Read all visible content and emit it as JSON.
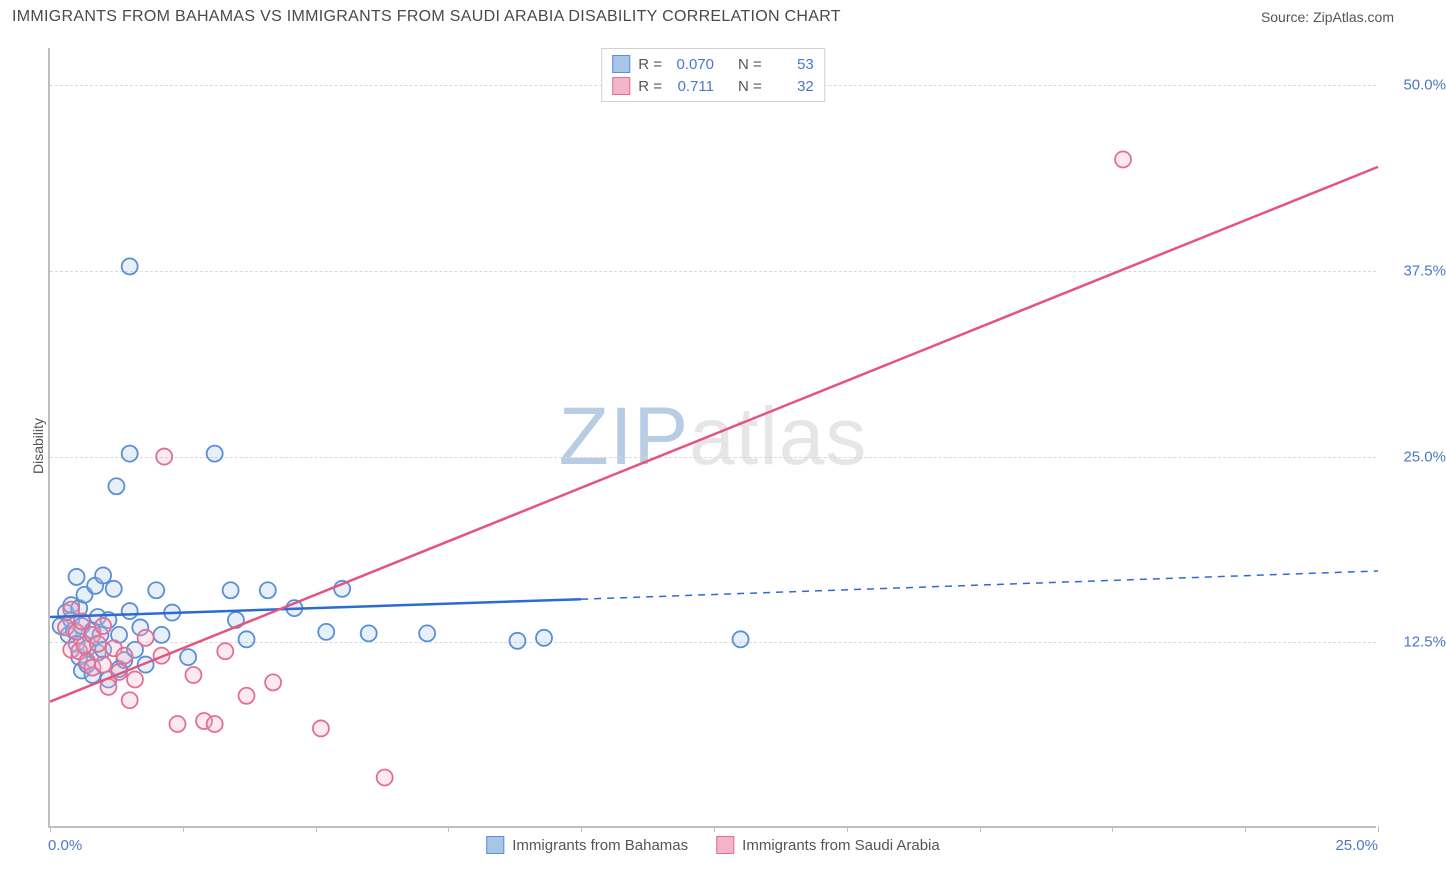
{
  "title": "IMMIGRANTS FROM BAHAMAS VS IMMIGRANTS FROM SAUDI ARABIA DISABILITY CORRELATION CHART",
  "source": "Source: ZipAtlas.com",
  "y_axis_label": "Disability",
  "watermark_a": "ZIP",
  "watermark_b": "atlas",
  "chart": {
    "type": "scatter",
    "xlim": [
      0.0,
      25.0
    ],
    "ylim": [
      0.0,
      52.5
    ],
    "x_ticks": [
      0.0,
      2.5,
      5.0,
      7.5,
      10.0,
      12.5,
      15.0,
      17.5,
      20.0,
      22.5,
      25.0
    ],
    "x_tick_labels": {
      "0": "0.0%",
      "25": "25.0%"
    },
    "y_ticks": [
      12.5,
      25.0,
      37.5,
      50.0
    ],
    "y_tick_labels": [
      "12.5%",
      "25.0%",
      "37.5%",
      "50.0%"
    ],
    "grid_color": "#d9d9d9",
    "axis_color": "#bfbfbf",
    "background_color": "#ffffff",
    "marker_radius": 8,
    "marker_stroke_width": 1.8,
    "marker_fill_opacity": 0.28
  },
  "series": [
    {
      "id": "bahamas",
      "name": "Immigrants from Bahamas",
      "color_stroke": "#5a8fd6",
      "color_fill": "#a8c5e8",
      "r_value": "0.070",
      "n_value": "53",
      "regression": {
        "solid": {
          "x1": 0.0,
          "y1": 14.2,
          "x2": 10.0,
          "y2": 15.4
        },
        "dashed": {
          "x1": 10.0,
          "y1": 15.4,
          "x2": 25.0,
          "y2": 17.3
        },
        "line_color": "#2e6bd1",
        "line_width": 2.5
      },
      "points": [
        [
          0.2,
          13.6
        ],
        [
          0.3,
          14.5
        ],
        [
          0.35,
          13.0
        ],
        [
          0.4,
          15.0
        ],
        [
          0.4,
          14.0
        ],
        [
          0.45,
          13.3
        ],
        [
          0.5,
          16.9
        ],
        [
          0.5,
          12.4
        ],
        [
          0.55,
          14.8
        ],
        [
          0.55,
          11.5
        ],
        [
          0.6,
          13.6
        ],
        [
          0.6,
          10.6
        ],
        [
          0.65,
          15.7
        ],
        [
          0.7,
          12.1
        ],
        [
          0.7,
          11.0
        ],
        [
          0.8,
          13.3
        ],
        [
          0.8,
          10.3
        ],
        [
          0.85,
          16.3
        ],
        [
          0.9,
          14.2
        ],
        [
          0.9,
          11.8
        ],
        [
          0.95,
          13.0
        ],
        [
          1.0,
          17.0
        ],
        [
          1.0,
          12.0
        ],
        [
          1.1,
          14.0
        ],
        [
          1.1,
          10.0
        ],
        [
          1.2,
          16.1
        ],
        [
          1.25,
          23.0
        ],
        [
          1.3,
          13.0
        ],
        [
          1.3,
          10.7
        ],
        [
          1.4,
          11.3
        ],
        [
          1.5,
          25.2
        ],
        [
          1.5,
          14.6
        ],
        [
          1.5,
          37.8
        ],
        [
          1.6,
          12.0
        ],
        [
          1.7,
          13.5
        ],
        [
          1.8,
          11.0
        ],
        [
          2.0,
          16.0
        ],
        [
          2.1,
          13.0
        ],
        [
          2.3,
          14.5
        ],
        [
          2.6,
          11.5
        ],
        [
          3.1,
          25.2
        ],
        [
          3.4,
          16.0
        ],
        [
          3.5,
          14.0
        ],
        [
          3.7,
          12.7
        ],
        [
          4.1,
          16.0
        ],
        [
          4.6,
          14.8
        ],
        [
          5.2,
          13.2
        ],
        [
          5.5,
          16.1
        ],
        [
          6.0,
          13.1
        ],
        [
          7.1,
          13.1
        ],
        [
          8.8,
          12.6
        ],
        [
          9.3,
          12.8
        ],
        [
          13.0,
          12.7
        ]
      ]
    },
    {
      "id": "saudi",
      "name": "Immigrants from Saudi Arabia",
      "color_stroke": "#e27095",
      "color_fill": "#f3b5c7",
      "r_value": "0.711",
      "n_value": "32",
      "regression": {
        "solid": {
          "x1": 0.0,
          "y1": 8.5,
          "x2": 25.0,
          "y2": 44.5
        },
        "dashed": null,
        "line_color": "#e3557f",
        "line_width": 2.5
      },
      "points": [
        [
          0.3,
          13.5
        ],
        [
          0.4,
          14.7
        ],
        [
          0.4,
          12.0
        ],
        [
          0.5,
          13.2
        ],
        [
          0.55,
          11.9
        ],
        [
          0.6,
          13.9
        ],
        [
          0.65,
          12.3
        ],
        [
          0.7,
          11.2
        ],
        [
          0.8,
          10.8
        ],
        [
          0.8,
          13.0
        ],
        [
          0.9,
          12.4
        ],
        [
          1.0,
          11.0
        ],
        [
          1.0,
          13.6
        ],
        [
          1.1,
          9.5
        ],
        [
          1.2,
          12.1
        ],
        [
          1.3,
          10.5
        ],
        [
          1.4,
          11.6
        ],
        [
          1.5,
          8.6
        ],
        [
          1.6,
          10.0
        ],
        [
          1.8,
          12.8
        ],
        [
          2.1,
          11.6
        ],
        [
          2.15,
          25.0
        ],
        [
          2.4,
          7.0
        ],
        [
          2.7,
          10.3
        ],
        [
          2.9,
          7.2
        ],
        [
          3.1,
          7.0
        ],
        [
          3.3,
          11.9
        ],
        [
          3.7,
          8.9
        ],
        [
          4.2,
          9.8
        ],
        [
          5.1,
          6.7
        ],
        [
          6.3,
          3.4
        ],
        [
          20.2,
          45.0
        ]
      ]
    }
  ],
  "legend_top_labels": {
    "r": "R =",
    "n": "N ="
  },
  "legend_bottom": [
    {
      "series": "bahamas"
    },
    {
      "series": "saudi"
    }
  ]
}
